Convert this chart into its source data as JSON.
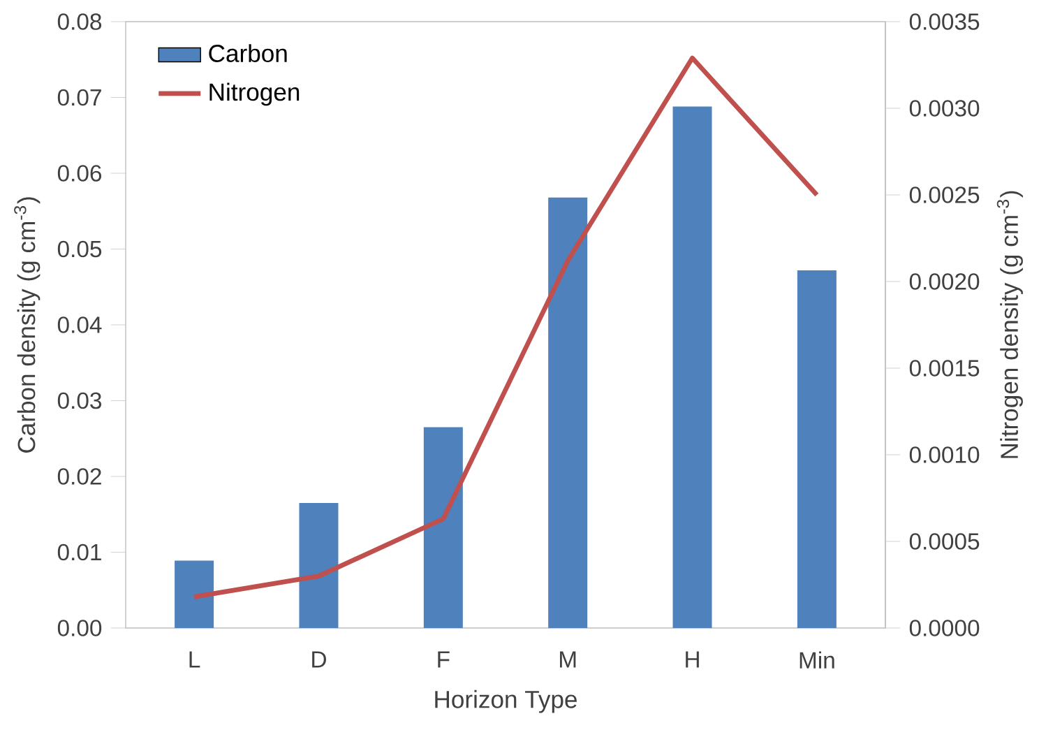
{
  "chart_data": {
    "type": "bar",
    "categories": [
      "L",
      "D",
      "F",
      "M",
      "H",
      "Min"
    ],
    "xlabel": "Horizon Type",
    "ylabel": "Carbon density (g cm$^{-3}$)",
    "y2label": "Nitrogen density (g cm$^{-3}$)",
    "series": [
      {
        "name": "Carbon",
        "color": "#4f81bd",
        "values": [
          0.0089,
          0.0165,
          0.0265,
          0.0568,
          0.0688,
          0.0472
        ]
      },
      {
        "name": "Nitrogen",
        "type": "line",
        "axis": "y2",
        "color": "#c0504d",
        "values": [
          0.00018,
          0.0003,
          0.00063,
          0.00212,
          0.00329,
          0.0025
        ]
      }
    ],
    "ylim": [
      0,
      0.08
    ],
    "yticks": [
      {
        "value": 0,
        "label": "0.00"
      },
      {
        "value": 0.01,
        "label": "0.01"
      },
      {
        "value": 0.02,
        "label": "0.02"
      },
      {
        "value": 0.03,
        "label": "0.03"
      },
      {
        "value": 0.04,
        "label": "0.04"
      },
      {
        "value": 0.05,
        "label": "0.05"
      },
      {
        "value": 0.06,
        "label": "0.06"
      },
      {
        "value": 0.07,
        "label": "0.07"
      },
      {
        "value": 0.08,
        "label": "0.08"
      }
    ],
    "y2lim": [
      0,
      0.0035
    ],
    "y2ticks": [
      {
        "value": 0,
        "label": "0.0000"
      },
      {
        "value": 0.0005,
        "label": "0.0005"
      },
      {
        "value": 0.001,
        "label": "0.0010"
      },
      {
        "value": 0.0015,
        "label": "0.0015"
      },
      {
        "value": 0.002,
        "label": "0.0020"
      },
      {
        "value": 0.0025,
        "label": "0.0025"
      },
      {
        "value": 0.003,
        "label": "0.0030"
      },
      {
        "value": 0.0035,
        "label": "0.0035"
      }
    ],
    "legend": "top left"
  }
}
